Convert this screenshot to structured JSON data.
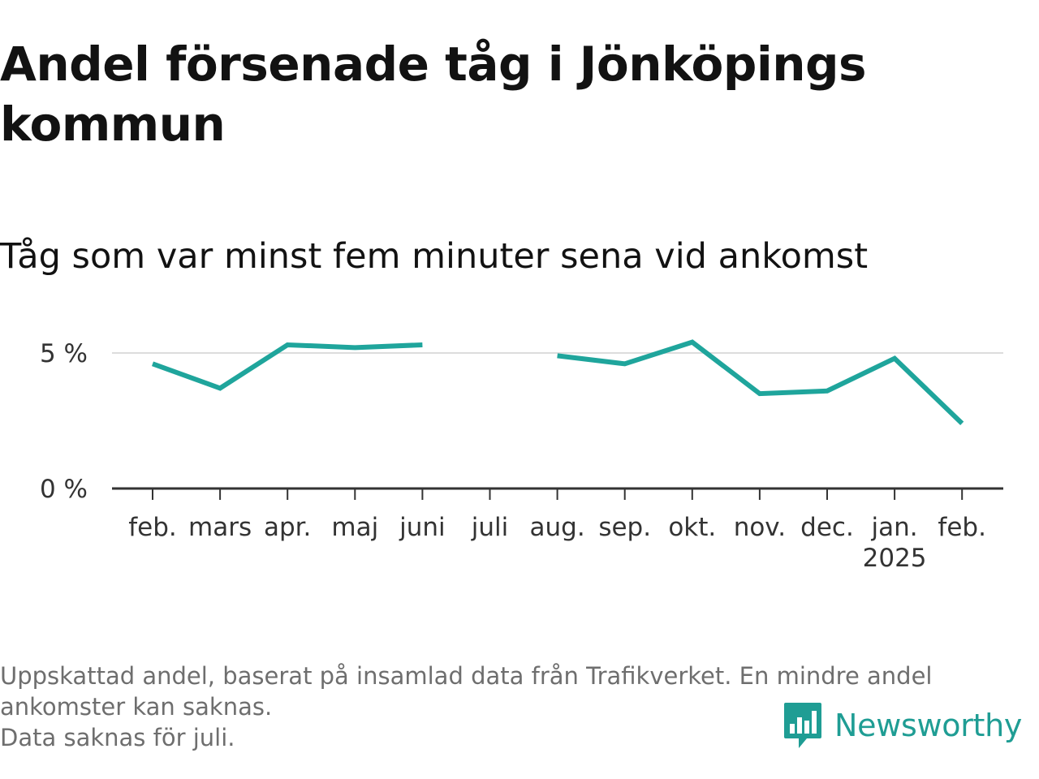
{
  "title": "Andel försenade tåg i Jönköpings kommun",
  "subtitle": "Tåg som var minst fem minuter sena vid ankomst",
  "footnotes": [
    "Uppskattad andel, baserat på insamlad data från Trafikverket. En mindre andel",
    "ankomster kan saknas.",
    "Data saknas för juli."
  ],
  "logo": {
    "text": "Newsworthy",
    "icon": "newsworthy-chart-bubble-icon"
  },
  "colors": {
    "line": "#1fa59c",
    "grid": "#dcdcdc",
    "axis": "#333333",
    "text": "#333333"
  },
  "chart_data": {
    "type": "line",
    "title": "Andel försenade tåg i Jönköpings kommun",
    "subtitle": "Tåg som var minst fem minuter sena vid ankomst",
    "xlabel": "",
    "ylabel": "",
    "categories": [
      "feb.",
      "mars",
      "apr.",
      "maj",
      "juni",
      "juli",
      "aug.",
      "sep.",
      "okt.",
      "nov.",
      "dec.",
      "jan.",
      "feb."
    ],
    "year_labels": [
      "",
      "",
      "",
      "",
      "",
      "",
      "",
      "",
      "",
      "",
      "",
      "2025",
      ""
    ],
    "series": [
      {
        "values": [
          4.6,
          3.7,
          5.3,
          5.2,
          5.3,
          null,
          4.9,
          4.6,
          5.4,
          3.5,
          3.6,
          4.8,
          2.4
        ]
      }
    ],
    "ylim": [
      0,
      6
    ],
    "yticks": [
      0,
      5
    ],
    "ytick_labels": [
      "0 %",
      "5 %"
    ],
    "grid": true,
    "legend": "none"
  }
}
